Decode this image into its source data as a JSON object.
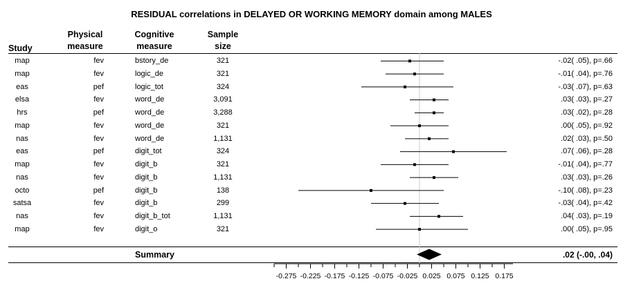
{
  "title": "RESIDUAL correlations in DELAYED OR WORKING MEMORY domain among MALES",
  "headers": {
    "study": "Study",
    "physical": [
      "Physical",
      "measure"
    ],
    "cognitive": [
      "Cognitive",
      "measure"
    ],
    "sample": [
      "Sample",
      "size"
    ]
  },
  "summary": {
    "label": "Summary",
    "stat": ".02 (-.00, .04)"
  },
  "chart_data": {
    "type": "forest",
    "title": "RESIDUAL correlations in DELAYED OR WORKING MEMORY domain among MALES",
    "xlim": [
      -0.3,
      0.2
    ],
    "ticks": [
      -0.275,
      -0.225,
      -0.175,
      -0.125,
      -0.075,
      -0.025,
      0.025,
      0.075,
      0.125,
      0.175
    ],
    "tick_labels": [
      "-0.275",
      "-0.225",
      "-0.175",
      "-0.125",
      "-0.075",
      "-0.025",
      "0.025",
      "0.075",
      "0.125",
      "0.175"
    ],
    "reference_line": 0.0,
    "rows": [
      {
        "study": "map",
        "physical": "fev",
        "cognitive": "bstory_de",
        "sample": "321",
        "est": -0.02,
        "lo": -0.08,
        "hi": 0.05,
        "stat": "-.02( .05), p=.66"
      },
      {
        "study": "map",
        "physical": "fev",
        "cognitive": "logic_de",
        "sample": "321",
        "est": -0.01,
        "lo": -0.07,
        "hi": 0.05,
        "stat": "-.01( .04), p=.76"
      },
      {
        "study": "eas",
        "physical": "pef",
        "cognitive": "logic_tot",
        "sample": "324",
        "est": -0.03,
        "lo": -0.12,
        "hi": 0.07,
        "stat": "-.03( .07), p=.63"
      },
      {
        "study": "elsa",
        "physical": "fev",
        "cognitive": "word_de",
        "sample": "3,091",
        "est": 0.03,
        "lo": -0.02,
        "hi": 0.06,
        "stat": ".03( .03), p=.27"
      },
      {
        "study": "hrs",
        "physical": "pef",
        "cognitive": "word_de",
        "sample": "3,288",
        "est": 0.03,
        "lo": -0.01,
        "hi": 0.05,
        "stat": ".03( .02), p=.28"
      },
      {
        "study": "map",
        "physical": "fev",
        "cognitive": "word_de",
        "sample": "321",
        "est": 0.0,
        "lo": -0.06,
        "hi": 0.06,
        "stat": ".00( .05), p=.92"
      },
      {
        "study": "nas",
        "physical": "fev",
        "cognitive": "word_de",
        "sample": "1,131",
        "est": 0.02,
        "lo": -0.03,
        "hi": 0.06,
        "stat": ".02( .03), p=.50"
      },
      {
        "study": "eas",
        "physical": "pef",
        "cognitive": "digit_tot",
        "sample": "324",
        "est": 0.07,
        "lo": -0.04,
        "hi": 0.18,
        "stat": ".07( .06), p=.28"
      },
      {
        "study": "map",
        "physical": "fev",
        "cognitive": "digit_b",
        "sample": "321",
        "est": -0.01,
        "lo": -0.08,
        "hi": 0.06,
        "stat": "-.01( .04), p=.77"
      },
      {
        "study": "nas",
        "physical": "fev",
        "cognitive": "digit_b",
        "sample": "1,131",
        "est": 0.03,
        "lo": -0.02,
        "hi": 0.08,
        "stat": ".03( .03), p=.26"
      },
      {
        "study": "octo",
        "physical": "pef",
        "cognitive": "digit_b",
        "sample": "138",
        "est": -0.1,
        "lo": -0.25,
        "hi": 0.05,
        "stat": "-.10( .08), p=.23"
      },
      {
        "study": "satsa",
        "physical": "fev",
        "cognitive": "digit_b",
        "sample": "299",
        "est": -0.03,
        "lo": -0.1,
        "hi": 0.04,
        "stat": "-.03( .04), p=.42"
      },
      {
        "study": "nas",
        "physical": "fev",
        "cognitive": "digit_b_tot",
        "sample": "1,131",
        "est": 0.04,
        "lo": -0.02,
        "hi": 0.09,
        "stat": ".04( .03), p=.19"
      },
      {
        "study": "map",
        "physical": "fev",
        "cognitive": "digit_o",
        "sample": "321",
        "est": 0.0,
        "lo": -0.09,
        "hi": 0.1,
        "stat": ".00( .05), p=.95"
      }
    ],
    "summary": {
      "est": 0.02,
      "lo": -0.0,
      "hi": 0.04
    }
  }
}
